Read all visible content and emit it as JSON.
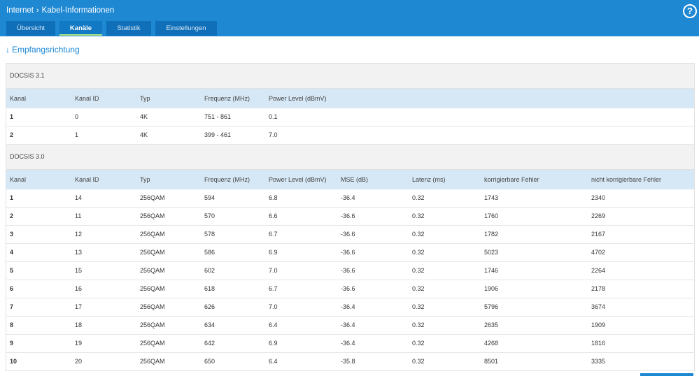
{
  "header": {
    "crumb_parent": "Internet",
    "crumb_current": "Kabel-Informationen",
    "help_label": "?"
  },
  "tabs": [
    {
      "label": "Übersicht",
      "active": false
    },
    {
      "label": "Kanäle",
      "active": true
    },
    {
      "label": "Statistik",
      "active": false
    },
    {
      "label": "Einstellungen",
      "active": false
    }
  ],
  "section_heading": "Empfangsrichtung",
  "docsis31": {
    "title": "DOCSIS 3.1",
    "columns": [
      "Kanal",
      "Kanal ID",
      "Typ",
      "Frequenz (MHz)",
      "Power Level (dBmV)"
    ],
    "rows": [
      [
        "1",
        "0",
        "4K",
        "751 - 861",
        "0.1"
      ],
      [
        "2",
        "1",
        "4K",
        "399 - 461",
        "7.0"
      ]
    ]
  },
  "docsis30": {
    "title": "DOCSIS 3.0",
    "columns": [
      "Kanal",
      "Kanal ID",
      "Typ",
      "Frequenz (MHz)",
      "Power Level (dBmV)",
      "MSE (dB)",
      "Latenz (ms)",
      "korrigierbare Fehler",
      "nicht korrigierbare Fehler"
    ],
    "rows": [
      [
        "1",
        "14",
        "256QAM",
        "594",
        "6.8",
        "-36.4",
        "0.32",
        "1743",
        "2340"
      ],
      [
        "2",
        "11",
        "256QAM",
        "570",
        "6.6",
        "-36.6",
        "0.32",
        "1760",
        "2269"
      ],
      [
        "3",
        "12",
        "256QAM",
        "578",
        "6.7",
        "-36.6",
        "0.32",
        "1782",
        "2167"
      ],
      [
        "4",
        "13",
        "256QAM",
        "586",
        "6.9",
        "-36.6",
        "0.32",
        "5023",
        "4702"
      ],
      [
        "5",
        "15",
        "256QAM",
        "602",
        "7.0",
        "-36.6",
        "0.32",
        "1746",
        "2264"
      ],
      [
        "6",
        "16",
        "256QAM",
        "618",
        "6.7",
        "-36.6",
        "0.32",
        "1906",
        "2178"
      ],
      [
        "7",
        "17",
        "256QAM",
        "626",
        "7.0",
        "-36.4",
        "0.32",
        "5796",
        "3674"
      ],
      [
        "8",
        "18",
        "256QAM",
        "634",
        "6.4",
        "-36.4",
        "0.32",
        "2635",
        "1909"
      ],
      [
        "9",
        "19",
        "256QAM",
        "642",
        "6.9",
        "-36.4",
        "0.32",
        "4268",
        "1816"
      ],
      [
        "10",
        "20",
        "256QAM",
        "650",
        "6.4",
        "-35.8",
        "0.32",
        "8501",
        "3335"
      ]
    ]
  }
}
